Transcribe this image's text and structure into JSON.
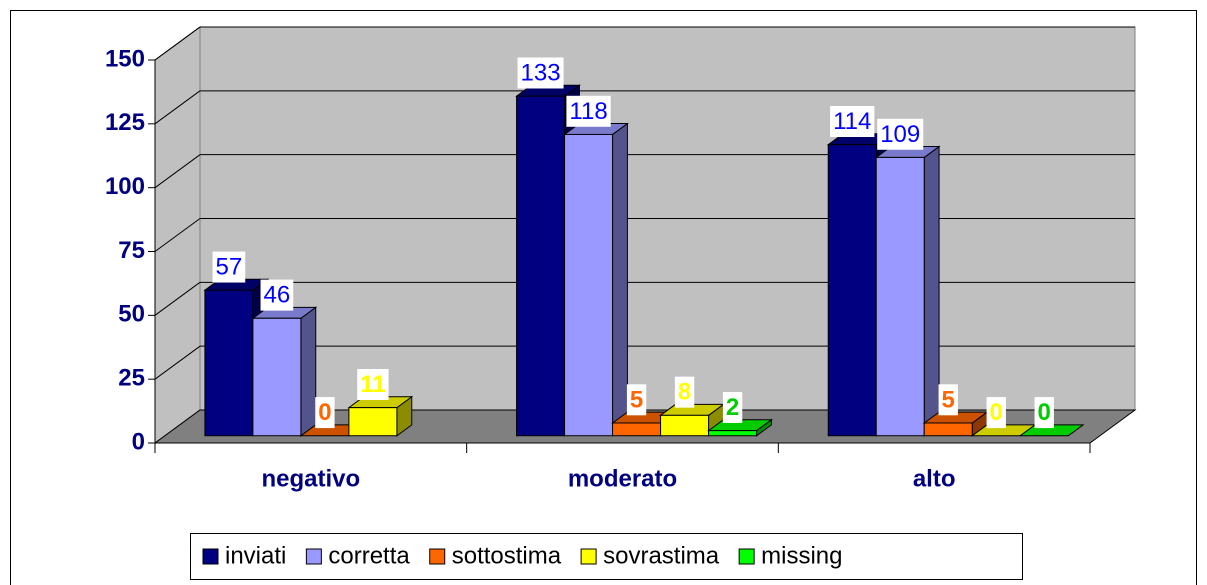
{
  "chart_data": {
    "type": "bar3d",
    "categories": [
      "negativo",
      "moderato",
      "alto"
    ],
    "series": [
      {
        "name": "inviati",
        "color": "#000080",
        "label_color": "#0000ff",
        "values": [
          57,
          133,
          114
        ]
      },
      {
        "name": "corretta",
        "color": "#9999ff",
        "label_color": "#0000ff",
        "values": [
          46,
          118,
          109
        ]
      },
      {
        "name": "sottostima",
        "color": "#ff6600",
        "label_color": "#ff6600",
        "values": [
          0,
          5,
          5
        ]
      },
      {
        "name": "sovrastima",
        "color": "#ffff00",
        "label_color": "#ffff00",
        "values": [
          11,
          8,
          0
        ]
      },
      {
        "name": "missing",
        "color": "#00ff00",
        "label_color": "#00cc00",
        "values": [
          null,
          2,
          0
        ]
      }
    ],
    "ylim": [
      0,
      150
    ],
    "yticks": [
      0,
      25,
      50,
      75,
      100,
      125,
      150
    ],
    "grid": true,
    "legend": "bottom"
  }
}
